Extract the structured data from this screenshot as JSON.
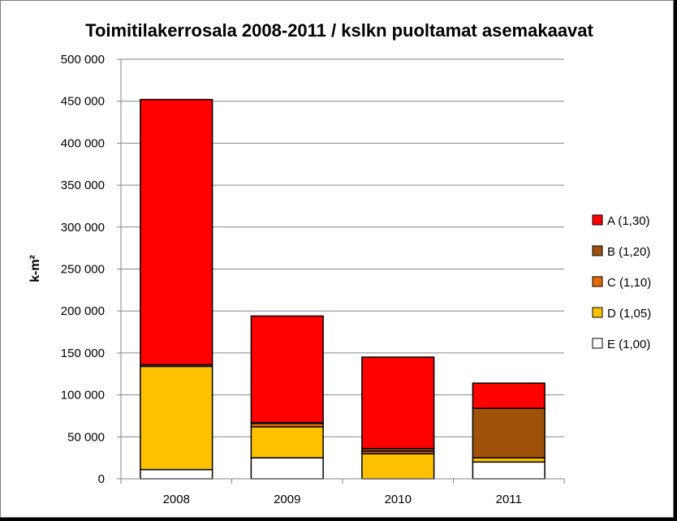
{
  "chart_data": {
    "type": "bar",
    "stacked": true,
    "title": "Toimitilakerrosala 2008-2011 / kslkn puoltamat asemakaavat",
    "xlabel": "",
    "ylabel": "k-m²",
    "ylim": [
      0,
      500000
    ],
    "yticks": [
      0,
      50000,
      100000,
      150000,
      200000,
      250000,
      300000,
      350000,
      400000,
      450000,
      500000
    ],
    "ytick_labels": [
      "0",
      "50 000",
      "100 000",
      "150 000",
      "200 000",
      "250 000",
      "300 000",
      "350 000",
      "400 000",
      "450 000",
      "500 000"
    ],
    "grid": true,
    "legend_position": "right",
    "categories": [
      "2008",
      "2009",
      "2010",
      "2011"
    ],
    "series": [
      {
        "name": "E (1,00)",
        "color": "#ffffff",
        "values": [
          11000,
          25000,
          0,
          20000
        ]
      },
      {
        "name": "D (1,05)",
        "color": "#ffc000",
        "values": [
          123000,
          37000,
          30000,
          5000
        ]
      },
      {
        "name": "C (1,10)",
        "color": "#e36c09",
        "values": [
          0,
          4000,
          3000,
          0
        ]
      },
      {
        "name": "B (1,20)",
        "color": "#a0520a",
        "values": [
          2000,
          1000,
          3000,
          59000
        ]
      },
      {
        "name": "A (1,30)",
        "color": "#ff0000",
        "values": [
          316000,
          127000,
          109000,
          30000
        ]
      }
    ]
  }
}
